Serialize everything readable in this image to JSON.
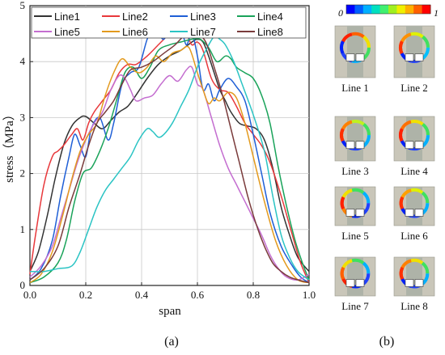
{
  "chart_data": {
    "type": "line",
    "xlabel": "span",
    "ylabel": "stress（MPa）",
    "xlim": [
      0.0,
      1.0
    ],
    "ylim": [
      0,
      5
    ],
    "xticks": [
      "0.0",
      "0.2",
      "0.4",
      "0.6",
      "0.8",
      "1.0"
    ],
    "yticks": [
      "0",
      "1",
      "2",
      "3",
      "4",
      "5"
    ],
    "grid": true,
    "legend_position": "top",
    "series": [
      {
        "name": "Line1",
        "color": "#333333",
        "x": [
          0.0,
          0.03,
          0.06,
          0.09,
          0.12,
          0.15,
          0.18,
          0.2,
          0.23,
          0.26,
          0.29,
          0.32,
          0.35,
          0.38,
          0.42,
          0.46,
          0.5,
          0.54,
          0.58,
          0.6,
          0.62,
          0.64,
          0.66,
          0.68,
          0.7,
          0.72,
          0.75,
          0.78,
          0.81,
          0.84,
          0.87,
          0.9,
          0.93,
          0.96,
          1.0
        ],
        "y": [
          0.25,
          0.6,
          1.2,
          1.9,
          2.5,
          2.85,
          3.0,
          3.02,
          2.9,
          2.8,
          2.95,
          3.1,
          3.2,
          3.4,
          3.7,
          3.95,
          4.1,
          4.2,
          4.35,
          4.4,
          4.35,
          4.1,
          3.8,
          3.5,
          3.3,
          3.1,
          2.9,
          2.85,
          2.8,
          2.6,
          2.1,
          1.4,
          0.9,
          0.5,
          0.25
        ]
      },
      {
        "name": "Line2",
        "color": "#e8383b",
        "x": [
          0.0,
          0.02,
          0.05,
          0.08,
          0.1,
          0.12,
          0.15,
          0.17,
          0.19,
          0.21,
          0.23,
          0.26,
          0.29,
          0.32,
          0.35,
          0.38,
          0.42,
          0.46,
          0.5,
          0.53,
          0.56,
          0.58,
          0.6,
          0.62,
          0.65,
          0.68,
          0.71,
          0.74,
          0.77,
          0.8,
          0.83,
          0.86,
          0.9,
          0.94,
          0.97,
          1.0
        ],
        "y": [
          0.2,
          0.9,
          1.8,
          2.3,
          2.4,
          2.5,
          2.7,
          2.8,
          2.6,
          2.9,
          3.1,
          3.3,
          3.5,
          3.8,
          3.95,
          3.95,
          4.1,
          4.3,
          4.5,
          4.62,
          4.5,
          4.3,
          4.35,
          4.2,
          3.7,
          3.5,
          3.45,
          3.2,
          2.9,
          2.7,
          2.5,
          2.2,
          1.6,
          0.9,
          0.4,
          0.05
        ]
      },
      {
        "name": "Line3",
        "color": "#1f5fd6",
        "x": [
          0.0,
          0.04,
          0.08,
          0.11,
          0.14,
          0.16,
          0.18,
          0.2,
          0.22,
          0.25,
          0.28,
          0.3,
          0.33,
          0.36,
          0.39,
          0.42,
          0.44,
          0.46,
          0.48,
          0.5,
          0.52,
          0.54,
          0.56,
          0.58,
          0.6,
          0.62,
          0.64,
          0.66,
          0.68,
          0.71,
          0.74,
          0.77,
          0.8,
          0.83,
          0.86,
          0.9,
          0.94,
          0.97,
          1.0
        ],
        "y": [
          0.1,
          0.3,
          0.8,
          1.6,
          2.3,
          2.7,
          2.5,
          2.3,
          2.8,
          3.0,
          2.6,
          2.9,
          3.6,
          3.8,
          3.9,
          4.4,
          4.55,
          4.5,
          4.4,
          4.6,
          4.55,
          4.62,
          4.3,
          4.5,
          4.1,
          3.5,
          3.6,
          3.3,
          3.5,
          3.7,
          3.55,
          3.3,
          2.7,
          2.0,
          1.3,
          0.7,
          0.35,
          0.15,
          0.05
        ]
      },
      {
        "name": "Line4",
        "color": "#1aa35a",
        "x": [
          0.0,
          0.05,
          0.1,
          0.13,
          0.16,
          0.19,
          0.22,
          0.25,
          0.28,
          0.31,
          0.34,
          0.37,
          0.4,
          0.43,
          0.46,
          0.5,
          0.54,
          0.58,
          0.61,
          0.64,
          0.67,
          0.7,
          0.72,
          0.74,
          0.77,
          0.8,
          0.83,
          0.86,
          0.89,
          0.92,
          0.95,
          0.98,
          1.0
        ],
        "y": [
          0.05,
          0.15,
          0.4,
          0.8,
          1.5,
          2.0,
          2.1,
          2.4,
          2.8,
          3.3,
          3.8,
          3.9,
          3.7,
          3.9,
          4.2,
          4.3,
          4.35,
          4.4,
          4.4,
          4.25,
          4.0,
          4.1,
          4.05,
          3.9,
          3.8,
          3.7,
          3.4,
          2.9,
          2.1,
          1.4,
          0.8,
          0.35,
          0.1
        ]
      },
      {
        "name": "Line5",
        "color": "#c46ed0",
        "x": [
          0.0,
          0.04,
          0.08,
          0.11,
          0.14,
          0.17,
          0.2,
          0.23,
          0.26,
          0.29,
          0.32,
          0.34,
          0.36,
          0.38,
          0.41,
          0.44,
          0.47,
          0.5,
          0.53,
          0.56,
          0.58,
          0.6,
          0.62,
          0.65,
          0.68,
          0.71,
          0.74,
          0.77,
          0.8,
          0.83,
          0.86,
          0.89,
          0.92,
          0.96,
          1.0
        ],
        "y": [
          0.15,
          0.35,
          0.7,
          1.2,
          1.7,
          2.2,
          2.6,
          2.9,
          3.1,
          3.5,
          3.75,
          3.7,
          3.5,
          3.3,
          3.35,
          3.4,
          3.6,
          3.75,
          3.65,
          3.85,
          3.9,
          3.6,
          3.5,
          3.0,
          2.5,
          2.1,
          1.8,
          1.5,
          1.2,
          0.9,
          0.55,
          0.3,
          0.15,
          0.1,
          0.2
        ]
      },
      {
        "name": "Line6",
        "color": "#e39a1d",
        "x": [
          0.0,
          0.04,
          0.08,
          0.12,
          0.15,
          0.18,
          0.21,
          0.24,
          0.27,
          0.3,
          0.33,
          0.36,
          0.39,
          0.42,
          0.45,
          0.48,
          0.51,
          0.54,
          0.57,
          0.6,
          0.62,
          0.64,
          0.66,
          0.68,
          0.71,
          0.74,
          0.77,
          0.8,
          0.84,
          0.88,
          0.92,
          0.96,
          1.0
        ],
        "y": [
          0.05,
          0.2,
          0.6,
          1.3,
          1.9,
          2.4,
          2.7,
          2.9,
          3.4,
          3.8,
          4.05,
          3.9,
          3.8,
          3.9,
          4.1,
          4.0,
          4.15,
          4.2,
          4.25,
          3.8,
          3.5,
          3.25,
          3.35,
          3.3,
          3.45,
          3.35,
          2.9,
          2.3,
          1.5,
          0.8,
          0.35,
          0.1,
          0.05
        ]
      },
      {
        "name": "Line7",
        "color": "#2bc4c4",
        "x": [
          0.0,
          0.05,
          0.1,
          0.15,
          0.18,
          0.21,
          0.24,
          0.27,
          0.3,
          0.33,
          0.36,
          0.39,
          0.42,
          0.44,
          0.46,
          0.48,
          0.51,
          0.54,
          0.57,
          0.6,
          0.63,
          0.66,
          0.68,
          0.7,
          0.73,
          0.76,
          0.8,
          0.84,
          0.87,
          0.9,
          0.93,
          0.96,
          1.0
        ],
        "y": [
          0.25,
          0.25,
          0.3,
          0.35,
          0.6,
          1.0,
          1.4,
          1.7,
          1.9,
          2.1,
          2.3,
          2.6,
          2.8,
          2.75,
          2.65,
          2.7,
          2.9,
          3.2,
          3.5,
          3.9,
          4.2,
          4.45,
          4.4,
          4.3,
          4.0,
          3.6,
          3.05,
          2.4,
          1.6,
          0.9,
          0.5,
          0.25,
          0.1
        ]
      },
      {
        "name": "Line8",
        "color": "#7a3b3b",
        "x": [
          0.0,
          0.05,
          0.1,
          0.14,
          0.18,
          0.21,
          0.24,
          0.27,
          0.3,
          0.33,
          0.36,
          0.4,
          0.44,
          0.48,
          0.52,
          0.55,
          0.58,
          0.6,
          0.63,
          0.66,
          0.69,
          0.72,
          0.75,
          0.78,
          0.81,
          0.84,
          0.87,
          0.9,
          0.93,
          0.96,
          1.0
        ],
        "y": [
          0.1,
          0.3,
          0.7,
          1.4,
          2.0,
          2.5,
          2.9,
          3.1,
          3.3,
          3.6,
          3.85,
          3.9,
          4.0,
          4.15,
          4.3,
          4.45,
          4.5,
          4.5,
          4.35,
          3.9,
          3.4,
          2.8,
          2.2,
          1.6,
          1.1,
          0.7,
          0.4,
          0.25,
          0.15,
          0.1,
          0.05
        ]
      }
    ]
  },
  "panels": {
    "a_label": "(a)",
    "b_label": "(b)"
  },
  "colorbar": {
    "min_label": "0",
    "max_label": "1",
    "colors": [
      "#0000ff",
      "#0060ff",
      "#00b0ff",
      "#00e0c0",
      "#40f070",
      "#a0f020",
      "#f0f000",
      "#ffb000",
      "#ff6000",
      "#ff0000"
    ]
  },
  "thumbnails": [
    {
      "label": "Line 1"
    },
    {
      "label": "Line 2"
    },
    {
      "label": "Line 3"
    },
    {
      "label": "Line 4"
    },
    {
      "label": "Line 5"
    },
    {
      "label": "Line 6"
    },
    {
      "label": "Line 7"
    },
    {
      "label": "Line 8"
    }
  ]
}
